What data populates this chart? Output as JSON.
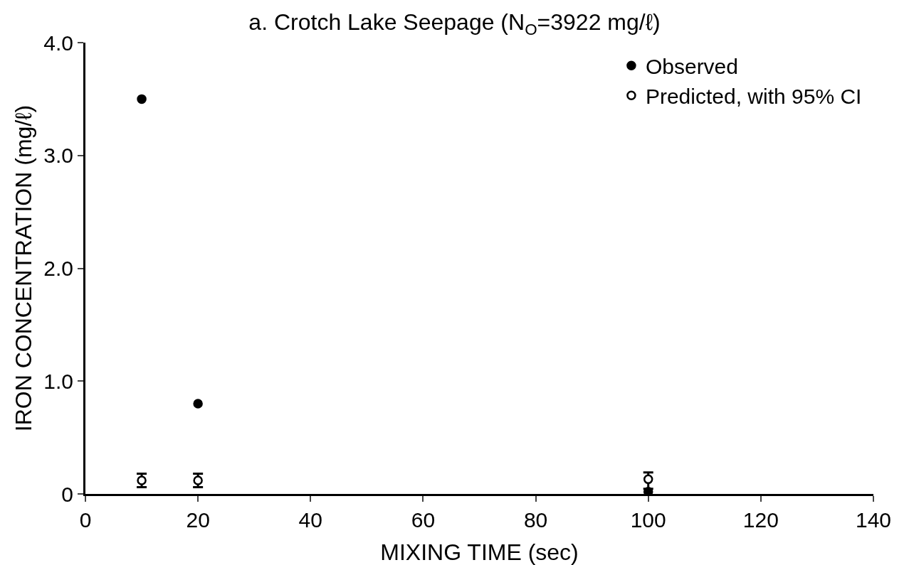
{
  "chart_data": {
    "type": "scatter",
    "title": "a. Crotch Lake Seepage (N$_{O}$=3922 mg/ℓ)",
    "xlabel": "MIXING TIME (sec)",
    "ylabel": "IRON CONCENTRATION (mg/ℓ)",
    "series": [
      {
        "name": "Observed",
        "color": "#000000",
        "marker": "circle",
        "x": [
          10,
          20,
          100
        ],
        "values": [
          3.5,
          0.8,
          0.02
        ]
      },
      {
        "name": "Predicted, with 95% CI",
        "color": "#ffffff",
        "marker": "circle",
        "x": [
          10,
          20,
          100
        ],
        "values": [
          0.12,
          0.12,
          0.13
        ],
        "errors": [
          0.06,
          0.06,
          [
            0.045,
            0.19
          ]
        ]
      }
    ],
    "xlim": [
      0,
      140
    ],
    "xticks": [
      0,
      20,
      40,
      60,
      80,
      100,
      120,
      140
    ],
    "ylim": [
      0,
      4.0
    ],
    "yticks": [
      0,
      {
        "value": 1,
        "label": "1.0"
      },
      {
        "value": 2,
        "label": "2.0"
      },
      {
        "value": 3,
        "label": "3.0"
      },
      {
        "value": 4,
        "label": "4.0"
      }
    ],
    "grid": false,
    "legend": "top right"
  }
}
